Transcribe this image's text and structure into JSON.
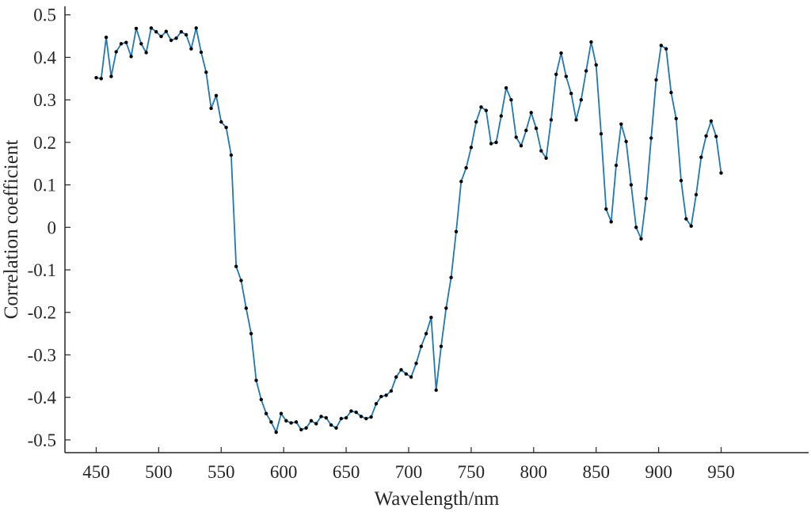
{
  "chart_data": {
    "type": "line",
    "title": "",
    "xlabel": "Wavelength/nm",
    "ylabel": "Correlation coefficient",
    "xlim": [
      425,
      1020
    ],
    "ylim": [
      -0.53,
      0.52
    ],
    "xticks": [
      450,
      500,
      550,
      600,
      650,
      700,
      750,
      800,
      850,
      900,
      950
    ],
    "yticks": [
      -0.5,
      -0.4,
      -0.3,
      -0.2,
      -0.1,
      0,
      0.1,
      0.2,
      0.3,
      0.4,
      0.5
    ],
    "ytick_labels": [
      "-0.5",
      "-0.4",
      "-0.3",
      "-0.2",
      "-0.1",
      "0",
      "0.1",
      "0.2",
      "0.3",
      "0.4",
      "0.5"
    ],
    "grid": false,
    "line_color": "#1f77b4",
    "marker_color": "#000000",
    "series": [
      {
        "x": [
          450,
          454,
          458,
          462,
          466,
          470,
          474,
          478,
          482,
          486,
          490,
          494,
          498,
          502,
          506,
          510,
          514,
          518,
          522,
          526,
          530,
          534,
          538,
          542,
          546,
          550,
          554,
          558,
          562,
          566,
          570,
          574,
          578,
          582,
          586,
          590,
          594,
          598,
          602,
          606,
          610,
          614,
          618,
          622,
          626,
          630,
          634,
          638,
          642,
          646,
          650,
          654,
          658,
          662,
          666,
          670,
          674,
          678,
          682,
          686,
          690,
          694,
          698,
          702,
          706,
          710,
          714,
          718,
          722,
          726,
          730,
          734,
          738,
          742,
          746,
          750,
          754,
          758,
          762,
          766,
          770,
          774,
          778,
          782,
          786,
          790,
          794,
          798,
          802,
          806,
          810,
          814,
          818,
          822,
          826,
          830,
          834,
          838,
          842,
          846,
          850,
          854,
          858,
          862,
          866,
          870,
          874,
          878,
          882,
          886,
          890,
          894,
          898,
          902,
          906,
          910,
          914,
          918,
          922,
          926,
          930,
          934,
          938,
          942,
          946,
          950
        ],
        "y": [
          0.352,
          0.35,
          0.447,
          0.355,
          0.413,
          0.432,
          0.435,
          0.402,
          0.468,
          0.432,
          0.411,
          0.469,
          0.46,
          0.449,
          0.461,
          0.44,
          0.445,
          0.46,
          0.453,
          0.42,
          0.469,
          0.412,
          0.365,
          0.28,
          0.31,
          0.248,
          0.235,
          0.17,
          -0.092,
          -0.125,
          -0.19,
          -0.25,
          -0.36,
          -0.405,
          -0.438,
          -0.458,
          -0.482,
          -0.438,
          -0.455,
          -0.46,
          -0.458,
          -0.476,
          -0.472,
          -0.455,
          -0.462,
          -0.445,
          -0.448,
          -0.465,
          -0.472,
          -0.45,
          -0.448,
          -0.432,
          -0.435,
          -0.445,
          -0.45,
          -0.446,
          -0.415,
          -0.398,
          -0.395,
          -0.385,
          -0.352,
          -0.335,
          -0.345,
          -0.352,
          -0.32,
          -0.28,
          -0.25,
          -0.212,
          -0.383,
          -0.28,
          -0.19,
          -0.118,
          -0.01,
          0.108,
          0.14,
          0.188,
          0.248,
          0.283,
          0.275,
          0.197,
          0.2,
          0.262,
          0.328,
          0.3,
          0.212,
          0.192,
          0.228,
          0.27,
          0.233,
          0.18,
          0.163,
          0.253,
          0.36,
          0.41,
          0.355,
          0.315,
          0.253,
          0.3,
          0.368,
          0.436,
          0.382,
          0.22,
          0.043,
          0.013,
          0.146,
          0.243,
          0.202,
          0.1,
          0.0,
          -0.027,
          0.068,
          0.21,
          0.347,
          0.428,
          0.42,
          0.317,
          0.256,
          0.11,
          0.02,
          0.003,
          0.077,
          0.165,
          0.215,
          0.25,
          0.214,
          0.128
        ]
      }
    ]
  }
}
